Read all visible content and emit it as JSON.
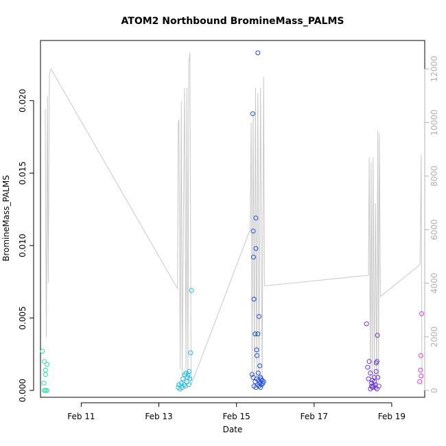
{
  "chart_data": {
    "type": "scatter",
    "title": "ATOM2 Northbound BromineMass_PALMS",
    "xlabel": "Date",
    "ylabel": "BromineMass_PALMS",
    "x_ticks": [
      "Feb 11",
      "Feb 13",
      "Feb 15",
      "Feb 17",
      "Feb 19"
    ],
    "x_tick_values": [
      11,
      13,
      15,
      17,
      19
    ],
    "xlim": [
      9.95,
      19.85
    ],
    "ylim": [
      0,
      0.0233
    ],
    "y_ticks": [
      0,
      0.005,
      0.01,
      0.015,
      0.02
    ],
    "y_tick_labels": [
      "0.000",
      "0.005",
      "0.010",
      "0.015",
      "0.020"
    ],
    "y2_ticks": [
      0,
      2000,
      4000,
      6000,
      8000,
      10000,
      12000
    ],
    "y2_tick_labels": [
      "0",
      "2000",
      "4000",
      "6000",
      "8000",
      "10000",
      "12000"
    ],
    "y2lim": [
      0,
      12600
    ],
    "line_color": "#c8c8c8",
    "altitude_line": [
      [
        10.07,
        10500
      ],
      [
        10.1,
        2000
      ],
      [
        10.13,
        11000
      ],
      [
        10.15,
        4000
      ],
      [
        10.18,
        11800
      ],
      [
        10.22,
        12000
      ],
      [
        13.48,
        3800
      ],
      [
        13.5,
        10000
      ],
      [
        13.52,
        10100
      ],
      [
        13.55,
        800
      ],
      [
        13.58,
        10800
      ],
      [
        13.6,
        500
      ],
      [
        13.66,
        11300
      ],
      [
        13.7,
        800
      ],
      [
        13.72,
        11300
      ],
      [
        13.75,
        500
      ],
      [
        13.77,
        12200
      ],
      [
        13.8,
        12600
      ],
      [
        13.83,
        200
      ],
      [
        15.35,
        6000
      ],
      [
        15.38,
        10000
      ],
      [
        15.4,
        500
      ],
      [
        15.43,
        10400
      ],
      [
        15.46,
        600
      ],
      [
        15.49,
        11300
      ],
      [
        15.52,
        400
      ],
      [
        15.55,
        11100
      ],
      [
        15.58,
        500
      ],
      [
        15.62,
        11300
      ],
      [
        15.66,
        500
      ],
      [
        15.7,
        11700
      ],
      [
        15.72,
        3900
      ],
      [
        18.4,
        4300
      ],
      [
        18.42,
        8700
      ],
      [
        18.45,
        400
      ],
      [
        18.47,
        8500
      ],
      [
        18.5,
        300
      ],
      [
        18.52,
        8700
      ],
      [
        18.55,
        400
      ],
      [
        18.58,
        7000
      ],
      [
        18.61,
        200
      ],
      [
        18.64,
        9700
      ],
      [
        18.66,
        300
      ],
      [
        18.68,
        9600
      ],
      [
        18.71,
        3500
      ],
      [
        19.73,
        4700
      ],
      [
        19.76,
        8800
      ],
      [
        19.78,
        200
      ]
    ],
    "series": [
      {
        "color": "#2bd9a6",
        "points": [
          [
            10.0,
            0.0027
          ],
          [
            10.04,
            0.0005
          ],
          [
            10.05,
            0.002
          ],
          [
            10.08,
            0.0014
          ],
          [
            10.08,
            0.0011
          ],
          [
            10.12,
            0.0018
          ],
          [
            10.05,
            0.0
          ],
          [
            10.08,
            0.0
          ],
          [
            10.12,
            0.0
          ]
        ]
      },
      {
        "color": "#1bbde0",
        "points": [
          [
            13.5,
            0.0002
          ],
          [
            13.52,
            0.0004
          ],
          [
            13.55,
            0.0001
          ],
          [
            13.58,
            0.0005
          ],
          [
            13.6,
            0.0002
          ],
          [
            13.62,
            0.0008
          ],
          [
            13.65,
            0.0004
          ],
          [
            13.67,
            0.0011
          ],
          [
            13.68,
            0.0003
          ],
          [
            13.7,
            0.0012
          ],
          [
            13.72,
            0.0006
          ],
          [
            13.74,
            0.0009
          ],
          [
            13.75,
            0.0011
          ],
          [
            13.77,
            0.0004
          ],
          [
            13.78,
            0.0013
          ],
          [
            13.8,
            0.0008
          ],
          [
            13.82,
            0.0026
          ],
          [
            13.84,
            0.0069
          ]
        ]
      },
      {
        "color": "#1f47e6",
        "points": [
          [
            15.42,
            0.0191
          ],
          [
            15.43,
            0.011
          ],
          [
            15.44,
            0.0092
          ],
          [
            15.45,
            0.0063
          ],
          [
            15.48,
            0.0039
          ],
          [
            15.5,
            0.0119
          ],
          [
            15.5,
            0.0098
          ],
          [
            15.52,
            0.0028
          ],
          [
            15.53,
            0.0024
          ],
          [
            15.55,
            0.0039
          ],
          [
            15.55,
            0.0233
          ],
          [
            15.58,
            0.0051
          ],
          [
            15.6,
            0.0017
          ],
          [
            15.62,
            0.0009
          ],
          [
            15.65,
            0.0004
          ],
          [
            15.4,
            0.0011
          ],
          [
            15.43,
            0.0009
          ],
          [
            15.48,
            0.0006
          ],
          [
            15.52,
            0.0008
          ],
          [
            15.55,
            0.0004
          ],
          [
            15.57,
            0.0007
          ],
          [
            15.6,
            0.0005
          ],
          [
            15.63,
            0.0008
          ],
          [
            15.66,
            0.0007
          ],
          [
            15.7,
            0.0006
          ],
          [
            15.45,
            0.0003
          ],
          [
            15.5,
            0.0002
          ],
          [
            15.58,
            0.0003
          ],
          [
            15.62,
            0.0002
          ],
          [
            15.68,
            0.0005
          ],
          [
            15.56,
            0.0012
          ]
        ]
      },
      {
        "color": "#6a2ee0",
        "points": [
          [
            18.35,
            0.0046
          ],
          [
            18.38,
            0.0016
          ],
          [
            18.4,
            0.0008
          ],
          [
            18.42,
            0.002
          ],
          [
            18.45,
            0.0012
          ],
          [
            18.48,
            0.0005
          ],
          [
            18.5,
            0.0007
          ],
          [
            18.52,
            0.0003
          ],
          [
            18.55,
            0.0006
          ],
          [
            18.58,
            0.0004
          ],
          [
            18.6,
            0.0019
          ],
          [
            18.62,
            0.002
          ],
          [
            18.63,
            0.0038
          ],
          [
            18.64,
            0.0009
          ],
          [
            18.67,
            0.0003
          ],
          [
            18.45,
            0.0001
          ],
          [
            18.5,
            0.0002
          ],
          [
            18.58,
            0.0002
          ],
          [
            18.62,
            0.0001
          ],
          [
            18.55,
            0.0009
          ],
          [
            18.48,
            0.0003
          ],
          [
            18.6,
            0.0013
          ]
        ]
      },
      {
        "color": "#d83ee8",
        "points": [
          [
            19.72,
            0.0006
          ],
          [
            19.74,
            0.0014
          ],
          [
            19.75,
            0.0024
          ],
          [
            19.77,
            0.0053
          ],
          [
            19.76,
            0.001
          ]
        ]
      }
    ]
  }
}
